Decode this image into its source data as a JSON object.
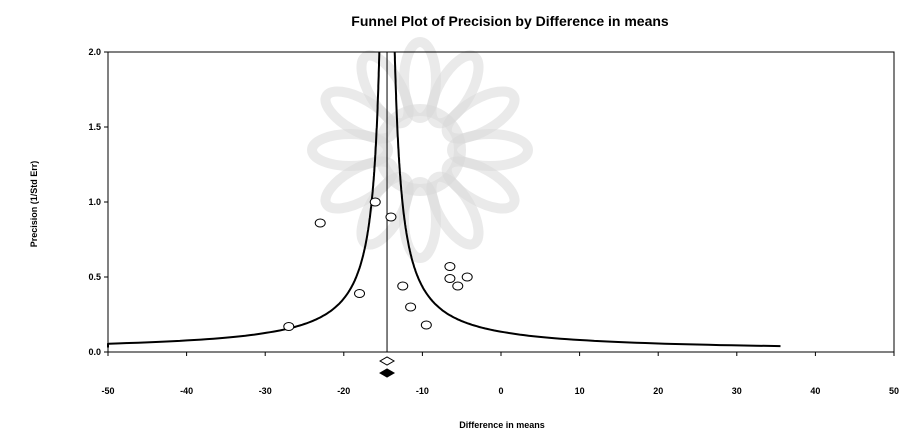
{
  "chart_data": {
    "type": "scatter",
    "title": "Funnel Plot of Precision by Difference in means",
    "xlabel": "Difference in means",
    "ylabel": "Precision (1/Std Err)",
    "xlim": [
      -50,
      50
    ],
    "ylim": [
      0,
      2.0
    ],
    "x_ticks": [
      "-50",
      "-40",
      "-30",
      "-20",
      "-10",
      "0",
      "10",
      "20",
      "30",
      "40",
      "50"
    ],
    "y_ticks": [
      "0.0",
      "0.5",
      "1.0",
      "1.5",
      "2.0"
    ],
    "grid": false,
    "legend": "none",
    "points": [
      {
        "x": -27.0,
        "y": 0.17
      },
      {
        "x": -23.0,
        "y": 0.86
      },
      {
        "x": -18.0,
        "y": 0.39
      },
      {
        "x": -16.0,
        "y": 1.0
      },
      {
        "x": -14.0,
        "y": 0.9
      },
      {
        "x": -12.5,
        "y": 0.44
      },
      {
        "x": -11.5,
        "y": 0.3
      },
      {
        "x": -9.5,
        "y": 0.18
      },
      {
        "x": -6.5,
        "y": 0.57
      },
      {
        "x": -6.5,
        "y": 0.49
      },
      {
        "x": -5.5,
        "y": 0.44
      },
      {
        "x": -4.3,
        "y": 0.5
      }
    ],
    "mean_line": -14.5,
    "funnel_constant": 1.96,
    "funnel_right_end_x": 36.5,
    "summary_observed": {
      "x": -14.5,
      "shape": "open-diamond"
    },
    "summary_adjusted": {
      "x": -14.5,
      "shape": "filled-diamond"
    },
    "colors": {
      "marker_stroke": "#000000",
      "line": "#000000",
      "watermark": "#d9d9d9"
    }
  }
}
